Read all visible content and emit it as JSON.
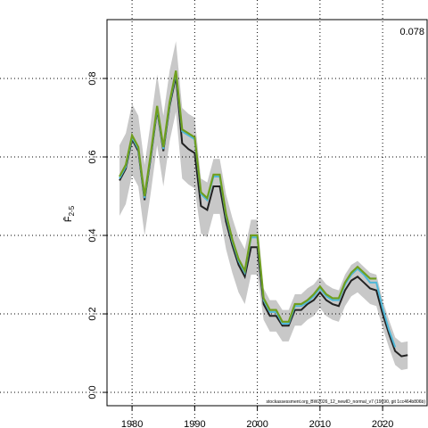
{
  "chart_data": {
    "type": "line",
    "annotation": "0.078",
    "footer": "stockassessment.org_BW2026_12_newID_normal_v7 (19690, git 1cc464b806b)",
    "ylabel": "F̄",
    "ylabel_sub": "2-5",
    "x": [
      1978,
      1979,
      1980,
      1981,
      1982,
      1983,
      1984,
      1985,
      1986,
      1987,
      1988,
      1989,
      1990,
      1991,
      1992,
      1993,
      1994,
      1995,
      1996,
      1997,
      1998,
      1999,
      2000,
      2001,
      2002,
      2003,
      2004,
      2005,
      2006,
      2007,
      2008,
      2009,
      2010,
      2011,
      2012,
      2013,
      2014,
      2015,
      2016,
      2017,
      2018,
      2019,
      2020,
      2021,
      2022,
      2023,
      2024
    ],
    "xlim": [
      1976,
      2027.1
    ],
    "ylim": [
      -0.034,
      0.95
    ],
    "xticks": [
      1980,
      1990,
      2000,
      2010,
      2020
    ],
    "yticks": [
      {
        "value": 0,
        "label": "0.0"
      },
      0.2,
      0.4,
      0.6,
      0.8
    ],
    "grid": true,
    "band": {
      "color": "#c8c8c8",
      "upper": [
        0.63,
        0.66,
        0.735,
        0.705,
        0.58,
        0.69,
        0.81,
        0.705,
        0.82,
        0.895,
        0.725,
        0.71,
        0.7,
        0.545,
        0.535,
        0.595,
        0.595,
        0.505,
        0.445,
        0.395,
        0.365,
        0.44,
        0.44,
        0.265,
        0.235,
        0.235,
        0.21,
        0.21,
        0.25,
        0.25,
        0.265,
        0.275,
        0.295,
        0.275,
        0.265,
        0.26,
        0.3,
        0.325,
        0.335,
        0.32,
        0.305,
        0.3,
        0.235,
        0.185,
        0.14,
        0.127,
        0.13
      ],
      "lower": [
        0.45,
        0.48,
        0.555,
        0.525,
        0.4,
        0.51,
        0.63,
        0.525,
        0.64,
        0.715,
        0.545,
        0.53,
        0.52,
        0.405,
        0.395,
        0.455,
        0.455,
        0.365,
        0.305,
        0.255,
        0.225,
        0.3,
        0.3,
        0.185,
        0.155,
        0.155,
        0.13,
        0.13,
        0.17,
        0.17,
        0.185,
        0.195,
        0.215,
        0.195,
        0.185,
        0.18,
        0.22,
        0.245,
        0.255,
        0.24,
        0.225,
        0.22,
        0.165,
        0.115,
        0.07,
        0.057,
        0.06
      ]
    },
    "series": [
      {
        "color": "#222222",
        "values": [
          0.54,
          0.57,
          0.645,
          0.615,
          0.49,
          0.6,
          0.72,
          0.615,
          0.73,
          0.805,
          0.635,
          0.62,
          0.61,
          0.475,
          0.465,
          0.525,
          0.525,
          0.435,
          0.375,
          0.325,
          0.295,
          0.37,
          0.37,
          0.225,
          0.195,
          0.195,
          0.17,
          0.17,
          0.21,
          0.21,
          0.225,
          0.235,
          0.255,
          0.235,
          0.225,
          0.22,
          0.26,
          0.285,
          0.295,
          0.28,
          0.265,
          0.26,
          0.2,
          0.15,
          0.105,
          0.092,
          0.095
        ]
      },
      {
        "color": "#4fb8d8",
        "values": [
          0.545,
          0.575,
          0.65,
          0.62,
          0.495,
          0.605,
          0.725,
          0.62,
          0.735,
          0.815,
          0.665,
          0.655,
          0.645,
          0.505,
          0.49,
          0.55,
          0.55,
          0.45,
          0.385,
          0.335,
          0.305,
          0.395,
          0.395,
          0.235,
          0.205,
          0.205,
          0.175,
          0.175,
          0.22,
          0.22,
          0.23,
          0.245,
          0.265,
          0.245,
          0.235,
          0.235,
          0.275,
          0.3,
          0.315,
          0.3,
          0.28,
          0.28,
          0.215,
          0.16,
          0.115,
          null,
          null
        ]
      },
      {
        "color": "#6f9e1e",
        "values": [
          0.55,
          0.58,
          0.655,
          0.625,
          0.5,
          0.61,
          0.73,
          0.625,
          0.74,
          0.82,
          0.67,
          0.66,
          0.65,
          0.51,
          0.495,
          0.555,
          0.555,
          0.455,
          0.39,
          0.34,
          0.31,
          0.4,
          0.4,
          0.24,
          0.21,
          0.21,
          0.18,
          0.18,
          0.225,
          0.225,
          0.235,
          0.25,
          0.27,
          0.25,
          0.24,
          0.24,
          0.28,
          0.305,
          0.32,
          0.305,
          0.29,
          0.29,
          null,
          null,
          null,
          null,
          null
        ]
      }
    ]
  }
}
